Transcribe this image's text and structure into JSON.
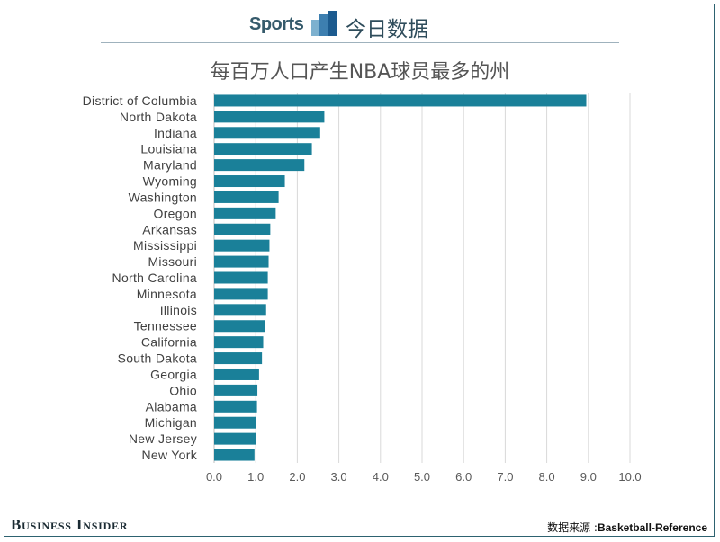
{
  "header": {
    "brand_sports": "Sports",
    "brand_cn": "今日数据",
    "brand_color": "#355a6b"
  },
  "footer": {
    "publisher": "Business Insider",
    "source_label": "数据来源 :",
    "source_name": "Basketball-Reference"
  },
  "chart_data": {
    "type": "bar",
    "orientation": "horizontal",
    "title": "每百万人口产生NBA球员最多的州",
    "xlabel": "",
    "ylabel": "",
    "xlim": [
      0,
      10
    ],
    "xticks": [
      "0.0",
      "1.0",
      "2.0",
      "3.0",
      "4.0",
      "5.0",
      "6.0",
      "7.0",
      "8.0",
      "9.0",
      "10.0"
    ],
    "grid": true,
    "bar_color": "#1a8099",
    "categories": [
      "District of Columbia",
      "North Dakota",
      "Indiana",
      "Louisiana",
      "Maryland",
      "Wyoming",
      "Washington",
      "Oregon",
      "Arkansas",
      "Mississippi",
      "Missouri",
      "North Carolina",
      "Minnesota",
      "Illinois",
      "Tennessee",
      "California",
      "South Dakota",
      "Georgia",
      "Ohio",
      "Alabama",
      "Michigan",
      "New Jersey",
      "New York"
    ],
    "values": [
      8.95,
      2.65,
      2.55,
      2.35,
      2.17,
      1.7,
      1.55,
      1.48,
      1.35,
      1.33,
      1.31,
      1.29,
      1.29,
      1.25,
      1.22,
      1.18,
      1.15,
      1.08,
      1.04,
      1.03,
      1.01,
      1.0,
      0.97
    ]
  }
}
